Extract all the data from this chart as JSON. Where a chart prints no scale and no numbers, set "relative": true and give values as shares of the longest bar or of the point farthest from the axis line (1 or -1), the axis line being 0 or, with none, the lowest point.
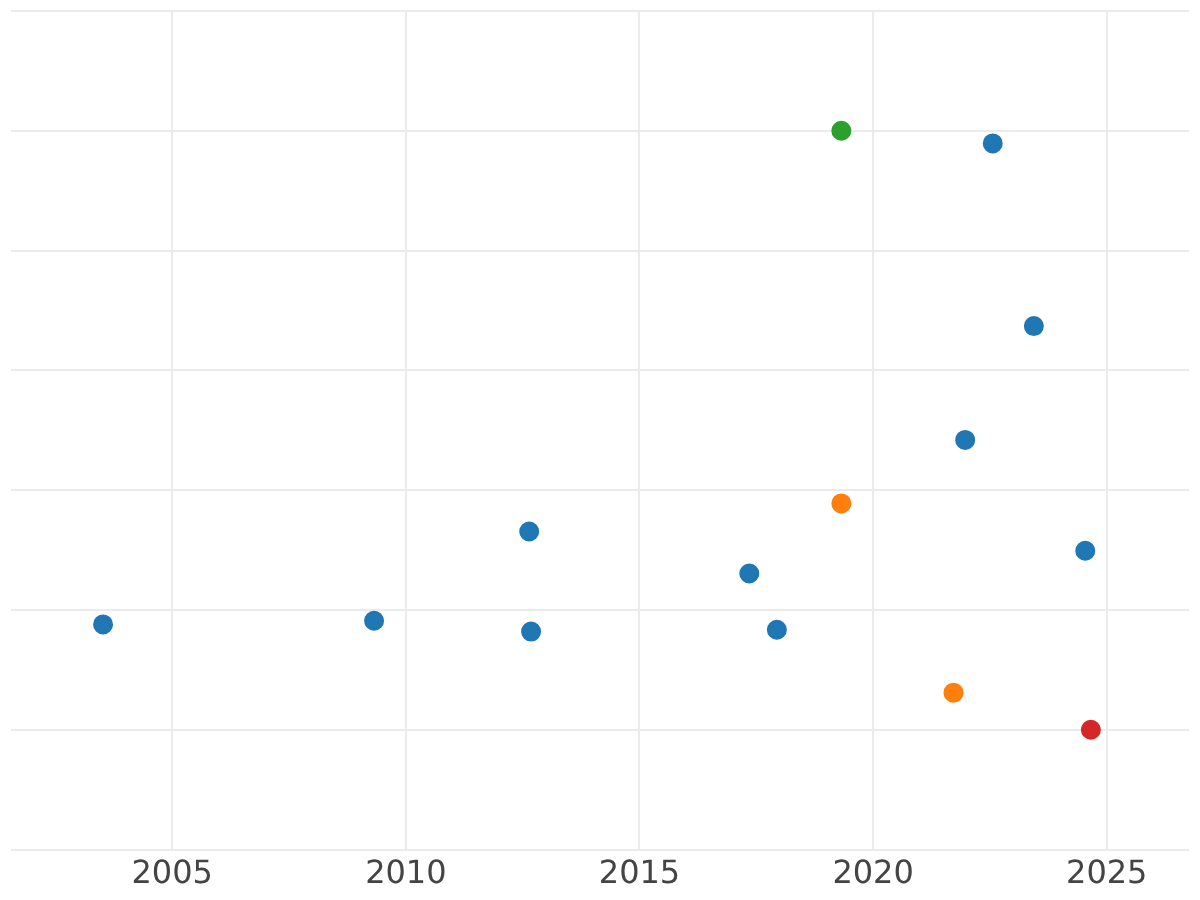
{
  "chart_data": {
    "type": "scatter",
    "relative": true,
    "grid": true,
    "marker": "circle",
    "x": [
      2003.52,
      2009.32,
      2012.64,
      2012.68,
      2017.35,
      2017.94,
      2019.32,
      2019.32,
      2021.72,
      2021.97,
      2022.56,
      2023.44,
      2024.54,
      2024.66
    ],
    "values": [
      0.176,
      0.182,
      0.331,
      0.164,
      0.261,
      0.167,
      1,
      0.378,
      0.062,
      0.484,
      0.979,
      0.674,
      0.299,
      0
    ],
    "colors": [
      "#1f77b4",
      "#1f77b4",
      "#1f77b4",
      "#1f77b4",
      "#1f77b4",
      "#1f77b4",
      "#2ca02c",
      "#ff7f0e",
      "#ff7f0e",
      "#1f77b4",
      "#1f77b4",
      "#1f77b4",
      "#1f77b4",
      "#d62728"
    ],
    "xlim": [
      2001.55,
      2026.76
    ],
    "xticks": [
      2005,
      2010,
      2015,
      2020,
      2025
    ]
  }
}
